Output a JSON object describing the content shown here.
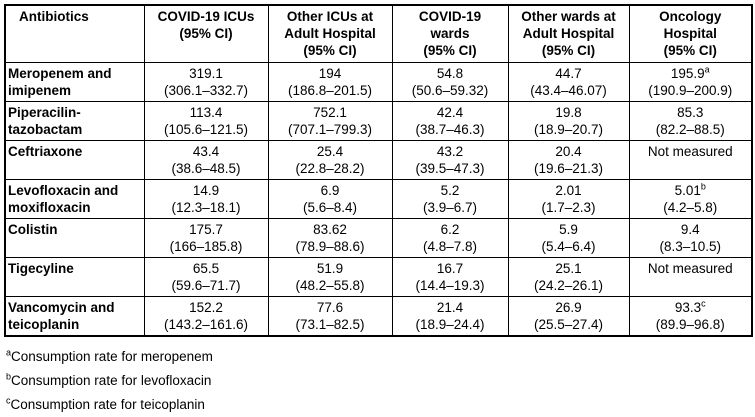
{
  "table": {
    "columns": [
      "Antibiotics",
      "COVID-19 ICUs\n(95% CI)",
      "Other ICUs at\nAdult Hospital\n(95% CI)",
      "COVID-19\nwards\n(95% CI)",
      "Other wards at\nAdult Hospital\n(95% CI)",
      "Oncology\nHospital\n(95% CI)"
    ],
    "rows": [
      {
        "name": "Meropenem and\nimipenem",
        "cells": [
          {
            "value": "319.1",
            "sup": "",
            "ci": "(306.1–332.7)"
          },
          {
            "value": "194",
            "sup": "",
            "ci": "(186.8–201.5)"
          },
          {
            "value": "54.8",
            "sup": "",
            "ci": "(50.6–59.32)"
          },
          {
            "value": "44.7",
            "sup": "",
            "ci": "(43.4–46.07)"
          },
          {
            "value": "195.9",
            "sup": "a",
            "ci": "(190.9–200.9)"
          }
        ]
      },
      {
        "name": "Piperacilin-\ntazobactam",
        "cells": [
          {
            "value": "113.4",
            "sup": "",
            "ci": "(105.6–121.5)"
          },
          {
            "value": "752.1",
            "sup": "",
            "ci": "(707.1–799.3)"
          },
          {
            "value": "42.4",
            "sup": "",
            "ci": "(38.7–46.3)"
          },
          {
            "value": "19.8",
            "sup": "",
            "ci": "(18.9–20.7)"
          },
          {
            "value": "85.3",
            "sup": "",
            "ci": "(82.2–88.5)"
          }
        ]
      },
      {
        "name": "Ceftriaxone",
        "cells": [
          {
            "value": "43.4",
            "sup": "",
            "ci": "(38.6–48.5)"
          },
          {
            "value": "25.4",
            "sup": "",
            "ci": "(22.8–28.2)"
          },
          {
            "value": "43.2",
            "sup": "",
            "ci": "(39.5–47.3)"
          },
          {
            "value": "20.4",
            "sup": "",
            "ci": "(19.6–21.3)"
          },
          {
            "value": "Not measured",
            "sup": "",
            "ci": ""
          }
        ]
      },
      {
        "name": "Levofloxacin and\nmoxifloxacin",
        "cells": [
          {
            "value": "14.9",
            "sup": "",
            "ci": "(12.3–18.1)"
          },
          {
            "value": "6.9",
            "sup": "",
            "ci": "(5.6–8.4)"
          },
          {
            "value": "5.2",
            "sup": "",
            "ci": "(3.9–6.7)"
          },
          {
            "value": "2.01",
            "sup": "",
            "ci": "(1.7–2.3)"
          },
          {
            "value": "5.01",
            "sup": "b",
            "ci": "(4.2–5.8)"
          }
        ]
      },
      {
        "name": "Colistin",
        "cells": [
          {
            "value": "175.7",
            "sup": "",
            "ci": "(166–185.8)"
          },
          {
            "value": "83.62",
            "sup": "",
            "ci": "(78.9–88.6)"
          },
          {
            "value": "6.2",
            "sup": "",
            "ci": "(4.8–7.8)"
          },
          {
            "value": "5.9",
            "sup": "",
            "ci": "(5.4–6.4)"
          },
          {
            "value": "9.4",
            "sup": "",
            "ci": "(8.3–10.5)"
          }
        ]
      },
      {
        "name": "Tigecyline",
        "cells": [
          {
            "value": "65.5",
            "sup": "",
            "ci": "(59.6–71.7)"
          },
          {
            "value": "51.9",
            "sup": "",
            "ci": "(48.2–55.8)"
          },
          {
            "value": "16.7",
            "sup": "",
            "ci": "(14.4–19.3)"
          },
          {
            "value": "25.1",
            "sup": "",
            "ci": "(24.2–26.1)"
          },
          {
            "value": "Not measured",
            "sup": "",
            "ci": ""
          }
        ]
      },
      {
        "name": "Vancomycin and\nteicoplanin",
        "cells": [
          {
            "value": "152.2",
            "sup": "",
            "ci": "(143.2–161.6)"
          },
          {
            "value": "77.6",
            "sup": "",
            "ci": "(73.1–82.5)"
          },
          {
            "value": "21.4",
            "sup": "",
            "ci": "(18.9–24.4)"
          },
          {
            "value": "26.9",
            "sup": "",
            "ci": "(25.5–27.4)"
          },
          {
            "value": "93.3",
            "sup": "c",
            "ci": "(89.9–96.8)"
          }
        ]
      }
    ]
  },
  "footnotes": [
    {
      "sup": "a",
      "text": "Consumption rate for meropenem"
    },
    {
      "sup": "b",
      "text": "Consumption rate for levofloxacin"
    },
    {
      "sup": "c",
      "text": "Consumption rate for teicoplanin"
    }
  ]
}
